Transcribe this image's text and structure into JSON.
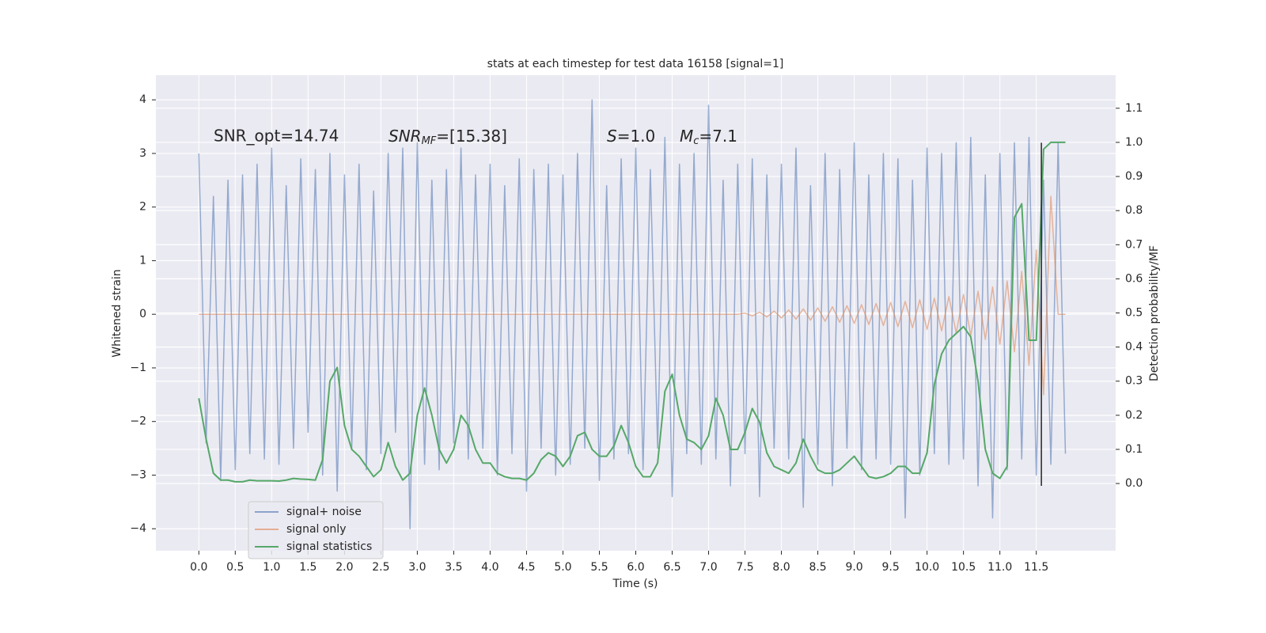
{
  "chart_data": {
    "type": "line",
    "title": "stats at each timestep for test data 16158 [signal=1]",
    "xlabel": "Time (s)",
    "ylabel": "Whitened strain",
    "y2label": "Detection probability/MF",
    "annotations": [
      {
        "text": "SNR_opt=14.74"
      },
      {
        "math": "SNR",
        "sub": "MF",
        "text": "=[15.38]"
      },
      {
        "math": "S",
        "text": "=1.0"
      },
      {
        "math": "M",
        "sub": "c",
        "text": "=7.1"
      }
    ],
    "x": [
      0.0,
      0.1,
      0.2,
      0.3,
      0.4,
      0.5,
      0.6,
      0.7,
      0.8,
      0.9,
      1.0,
      1.1,
      1.2,
      1.3,
      1.4,
      1.5,
      1.6,
      1.7,
      1.8,
      1.9,
      2.0,
      2.1,
      2.2,
      2.3,
      2.4,
      2.5,
      2.6,
      2.7,
      2.8,
      2.9,
      3.0,
      3.1,
      3.2,
      3.3,
      3.4,
      3.5,
      3.6,
      3.7,
      3.8,
      3.9,
      4.0,
      4.1,
      4.2,
      4.3,
      4.4,
      4.5,
      4.6,
      4.7,
      4.8,
      4.9,
      5.0,
      5.1,
      5.2,
      5.3,
      5.4,
      5.5,
      5.6,
      5.7,
      5.8,
      5.9,
      6.0,
      6.1,
      6.2,
      6.3,
      6.4,
      6.5,
      6.6,
      6.7,
      6.8,
      6.9,
      7.0,
      7.1,
      7.2,
      7.3,
      7.4,
      7.5,
      7.6,
      7.7,
      7.8,
      7.9,
      8.0,
      8.1,
      8.2,
      8.3,
      8.4,
      8.5,
      8.6,
      8.7,
      8.8,
      8.9,
      9.0,
      9.1,
      9.2,
      9.3,
      9.4,
      9.5,
      9.6,
      9.7,
      9.8,
      9.9,
      10.0,
      10.1,
      10.2,
      10.3,
      10.4,
      10.5,
      10.6,
      10.7,
      10.8,
      10.9,
      11.0,
      11.1,
      11.2,
      11.3,
      11.4,
      11.5,
      11.6,
      11.7,
      11.8,
      11.9
    ],
    "series": [
      {
        "name": "signal+ noise",
        "color": "#4c72b0",
        "values": [
          3.0,
          -2.4,
          2.2,
          -3.1,
          2.5,
          -2.9,
          2.6,
          -2.6,
          2.8,
          -2.7,
          3.1,
          -2.8,
          2.4,
          -2.5,
          2.9,
          -2.2,
          2.7,
          -3.0,
          3.0,
          -3.3,
          2.6,
          -2.5,
          2.8,
          -2.9,
          2.3,
          -2.6,
          3.0,
          -2.2,
          3.1,
          -4.0,
          3.2,
          -2.8,
          2.5,
          -2.9,
          2.7,
          -2.4,
          3.1,
          -2.7,
          2.6,
          -2.5,
          2.8,
          -3.0,
          2.4,
          -2.6,
          2.9,
          -3.3,
          2.7,
          -2.5,
          2.8,
          -3.0,
          2.6,
          -2.8,
          3.0,
          -2.5,
          4.0,
          -3.1,
          2.4,
          -2.7,
          2.9,
          -2.6,
          3.1,
          -2.9,
          2.7,
          -2.5,
          3.3,
          -3.4,
          2.8,
          -2.6,
          3.0,
          -2.8,
          3.9,
          -2.7,
          2.5,
          -3.2,
          2.8,
          -2.6,
          2.9,
          -3.4,
          2.6,
          -2.5,
          2.8,
          -2.7,
          3.1,
          -3.6,
          2.4,
          -2.8,
          3.0,
          -3.2,
          2.7,
          -2.5,
          3.2,
          -2.9,
          2.6,
          -2.7,
          3.0,
          -2.8,
          2.9,
          -3.8,
          2.5,
          -3.0,
          3.1,
          -2.6,
          3.0,
          -2.8,
          3.2,
          -2.7,
          3.3,
          -3.2,
          2.6,
          -3.8,
          3.0,
          -2.9,
          3.2,
          -2.7,
          3.3,
          -3.0,
          2.5,
          -2.8,
          3.2,
          -2.6
        ]
      },
      {
        "name": "signal only",
        "color": "#dd8452",
        "values": [
          0,
          0,
          0,
          0,
          0,
          0,
          0,
          0,
          0,
          0,
          0,
          0,
          0,
          0,
          0,
          0,
          0,
          0,
          0,
          0,
          0,
          0,
          0,
          0,
          0,
          0,
          0,
          0,
          0,
          0,
          0,
          0,
          0,
          0,
          0,
          0,
          0,
          0,
          0,
          0,
          0,
          0,
          0,
          0,
          0,
          0,
          0,
          0,
          0,
          0,
          0,
          0,
          0,
          0,
          0,
          0,
          0,
          0,
          0,
          0,
          0,
          0,
          0,
          0,
          0,
          0,
          0,
          0,
          0,
          0,
          0,
          0,
          0,
          0,
          0,
          0.02,
          -0.03,
          0.04,
          -0.05,
          0.06,
          -0.07,
          0.08,
          -0.09,
          0.1,
          -0.11,
          0.12,
          -0.13,
          0.14,
          -0.15,
          0.16,
          -0.17,
          0.18,
          -0.19,
          0.2,
          -0.21,
          0.22,
          -0.23,
          0.24,
          -0.25,
          0.27,
          -0.28,
          0.3,
          -0.31,
          0.33,
          -0.35,
          0.37,
          -0.4,
          0.43,
          -0.47,
          0.51,
          -0.56,
          0.62,
          -0.7,
          0.8,
          -0.95,
          1.2,
          -1.5,
          2.2,
          0,
          0
        ]
      },
      {
        "name": "signal statistics",
        "color": "#55a868",
        "axis": "y2",
        "values": [
          0.25,
          0.13,
          0.03,
          0.01,
          0.01,
          0.005,
          0.005,
          0.01,
          0.008,
          0.008,
          0.008,
          0.007,
          0.01,
          0.015,
          0.013,
          0.012,
          0.01,
          0.07,
          0.3,
          0.34,
          0.17,
          0.1,
          0.08,
          0.05,
          0.02,
          0.04,
          0.12,
          0.05,
          0.01,
          0.03,
          0.2,
          0.28,
          0.2,
          0.1,
          0.06,
          0.1,
          0.2,
          0.17,
          0.1,
          0.06,
          0.06,
          0.03,
          0.02,
          0.015,
          0.015,
          0.01,
          0.03,
          0.07,
          0.09,
          0.08,
          0.05,
          0.08,
          0.14,
          0.15,
          0.1,
          0.08,
          0.08,
          0.11,
          0.17,
          0.12,
          0.05,
          0.02,
          0.02,
          0.06,
          0.27,
          0.32,
          0.2,
          0.13,
          0.12,
          0.1,
          0.14,
          0.25,
          0.2,
          0.1,
          0.1,
          0.15,
          0.22,
          0.18,
          0.09,
          0.05,
          0.04,
          0.03,
          0.06,
          0.13,
          0.08,
          0.04,
          0.03,
          0.03,
          0.04,
          0.06,
          0.08,
          0.05,
          0.02,
          0.015,
          0.02,
          0.03,
          0.05,
          0.05,
          0.03,
          0.03,
          0.09,
          0.29,
          0.38,
          0.42,
          0.44,
          0.46,
          0.43,
          0.3,
          0.1,
          0.03,
          0.015,
          0.05,
          0.78,
          0.82,
          0.42,
          0.42,
          0.98,
          1.0,
          1.0,
          1.0
        ]
      }
    ],
    "vline": {
      "x": 11.57,
      "y": [
        -3.2,
        3.2
      ],
      "color": "#262626"
    },
    "xlim": [
      -0.59,
      12.59
    ],
    "ylim": [
      -4.41,
      4.46
    ],
    "y2lim": [
      -0.197,
      1.197
    ],
    "xticks": [
      {
        "value": 0,
        "label": "0.0"
      },
      {
        "value": 0.5,
        "label": "0.5"
      },
      {
        "value": 1,
        "label": "1.0"
      },
      {
        "value": 1.5,
        "label": "1.5"
      },
      {
        "value": 2,
        "label": "2.0"
      },
      {
        "value": 2.5,
        "label": "2.5"
      },
      {
        "value": 3,
        "label": "3.0"
      },
      {
        "value": 3.5,
        "label": "3.5"
      },
      {
        "value": 4,
        "label": "4.0"
      },
      {
        "value": 4.5,
        "label": "4.5"
      },
      {
        "value": 5,
        "label": "5.0"
      },
      {
        "value": 5.5,
        "label": "5.5"
      },
      {
        "value": 6,
        "label": "6.0"
      },
      {
        "value": 6.5,
        "label": "6.5"
      },
      {
        "value": 7,
        "label": "7.0"
      },
      {
        "value": 7.5,
        "label": "7.5"
      },
      {
        "value": 8,
        "label": "8.0"
      },
      {
        "value": 8.5,
        "label": "8.5"
      },
      {
        "value": 9,
        "label": "9.0"
      },
      {
        "value": 9.5,
        "label": "9.5"
      },
      {
        "value": 10,
        "label": "10.0"
      },
      {
        "value": 10.5,
        "label": "10.5"
      },
      {
        "value": 11,
        "label": "11.0"
      },
      {
        "value": 11.5,
        "label": "11.5"
      }
    ],
    "yticks": [
      {
        "value": -4,
        "label": "−4"
      },
      {
        "value": -3,
        "label": "−3"
      },
      {
        "value": -2,
        "label": "−2"
      },
      {
        "value": -1,
        "label": "−1"
      },
      0,
      1,
      2,
      3,
      4
    ],
    "y2ticks": [
      {
        "value": 0,
        "label": "0.0"
      },
      {
        "value": 0.1,
        "label": "0.1"
      },
      {
        "value": 0.2,
        "label": "0.2"
      },
      {
        "value": 0.3,
        "label": "0.3"
      },
      {
        "value": 0.4,
        "label": "0.4"
      },
      {
        "value": 0.5,
        "label": "0.5"
      },
      {
        "value": 0.6,
        "label": "0.6"
      },
      {
        "value": 0.7,
        "label": "0.7"
      },
      {
        "value": 0.8,
        "label": "0.8"
      },
      {
        "value": 0.9,
        "label": "0.9"
      },
      {
        "value": 1.0,
        "label": "1.0"
      },
      {
        "value": 1.1,
        "label": "1.1"
      }
    ],
    "grid": true,
    "legend": "lower left"
  }
}
